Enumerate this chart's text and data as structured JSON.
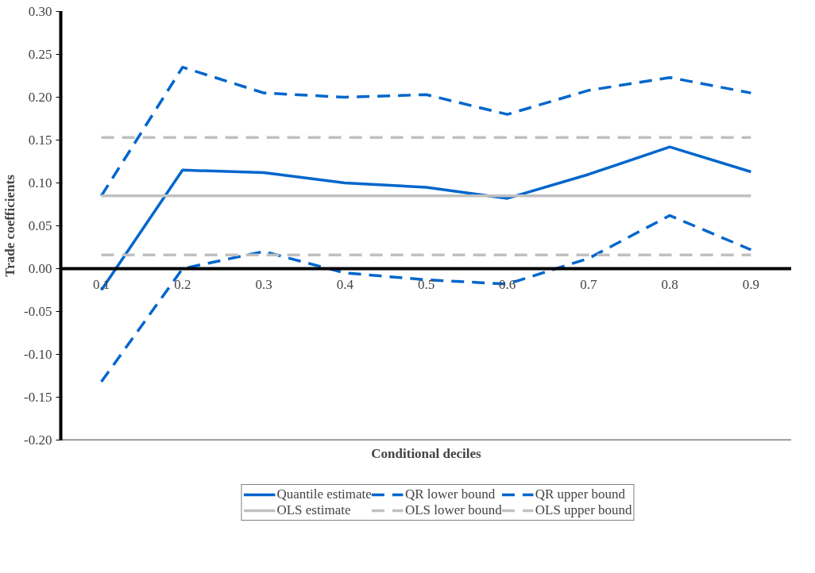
{
  "chart_data": {
    "type": "line",
    "xlabel": "Conditional deciles",
    "ylabel": "Trade coefficients",
    "categories": [
      "0.1",
      "0.2",
      "0.3",
      "0.4",
      "0.5",
      "0.6",
      "0.7",
      "0.8",
      "0.9"
    ],
    "series": [
      {
        "name": "Quantile estimate",
        "color": "#0066cc",
        "line_style": "solid",
        "values": [
          -0.025,
          0.115,
          0.112,
          0.1,
          0.095,
          0.082,
          0.11,
          0.142,
          0.113
        ]
      },
      {
        "name": "QR lower bound",
        "color": "#0066cc",
        "line_style": "dashed",
        "values": [
          -0.132,
          0.0,
          0.02,
          -0.005,
          -0.013,
          -0.018,
          0.012,
          0.062,
          0.022
        ]
      },
      {
        "name": "QR upper bound",
        "color": "#0066cc",
        "line_style": "dashed",
        "values": [
          0.085,
          0.235,
          0.205,
          0.2,
          0.203,
          0.18,
          0.208,
          0.223,
          0.205
        ]
      },
      {
        "name": "OLS estimate",
        "color": "#c0c0c0",
        "line_style": "solid",
        "values": [
          0.085,
          0.085,
          0.085,
          0.085,
          0.085,
          0.085,
          0.085,
          0.085,
          0.085
        ]
      },
      {
        "name": "OLS lower bound",
        "color": "#c0c0c0",
        "line_style": "dashed",
        "values": [
          0.016,
          0.016,
          0.016,
          0.016,
          0.016,
          0.016,
          0.016,
          0.016,
          0.016
        ]
      },
      {
        "name": "OLS upper bound",
        "color": "#c0c0c0",
        "line_style": "dashed",
        "values": [
          0.153,
          0.153,
          0.153,
          0.153,
          0.153,
          0.153,
          0.153,
          0.153,
          0.153
        ]
      }
    ],
    "ylim": [
      -0.2,
      0.3
    ],
    "yticks": [
      {
        "value": -0.2,
        "label": "-0.20"
      },
      {
        "value": -0.15,
        "label": "-0.15"
      },
      {
        "value": -0.1,
        "label": "-0.10"
      },
      {
        "value": -0.05,
        "label": "-0.05"
      },
      {
        "value": 0,
        "label": "0.00"
      },
      {
        "value": 0.05,
        "label": "0.05"
      },
      {
        "value": 0.1,
        "label": "0.10"
      },
      {
        "value": 0.15,
        "label": "0.15"
      },
      {
        "value": 0.2,
        "label": "0.20"
      },
      {
        "value": 0.25,
        "label": "0.25"
      },
      {
        "value": 0.3,
        "label": "0.30"
      }
    ],
    "grid": false,
    "legend": "bottom",
    "marker": "none"
  }
}
